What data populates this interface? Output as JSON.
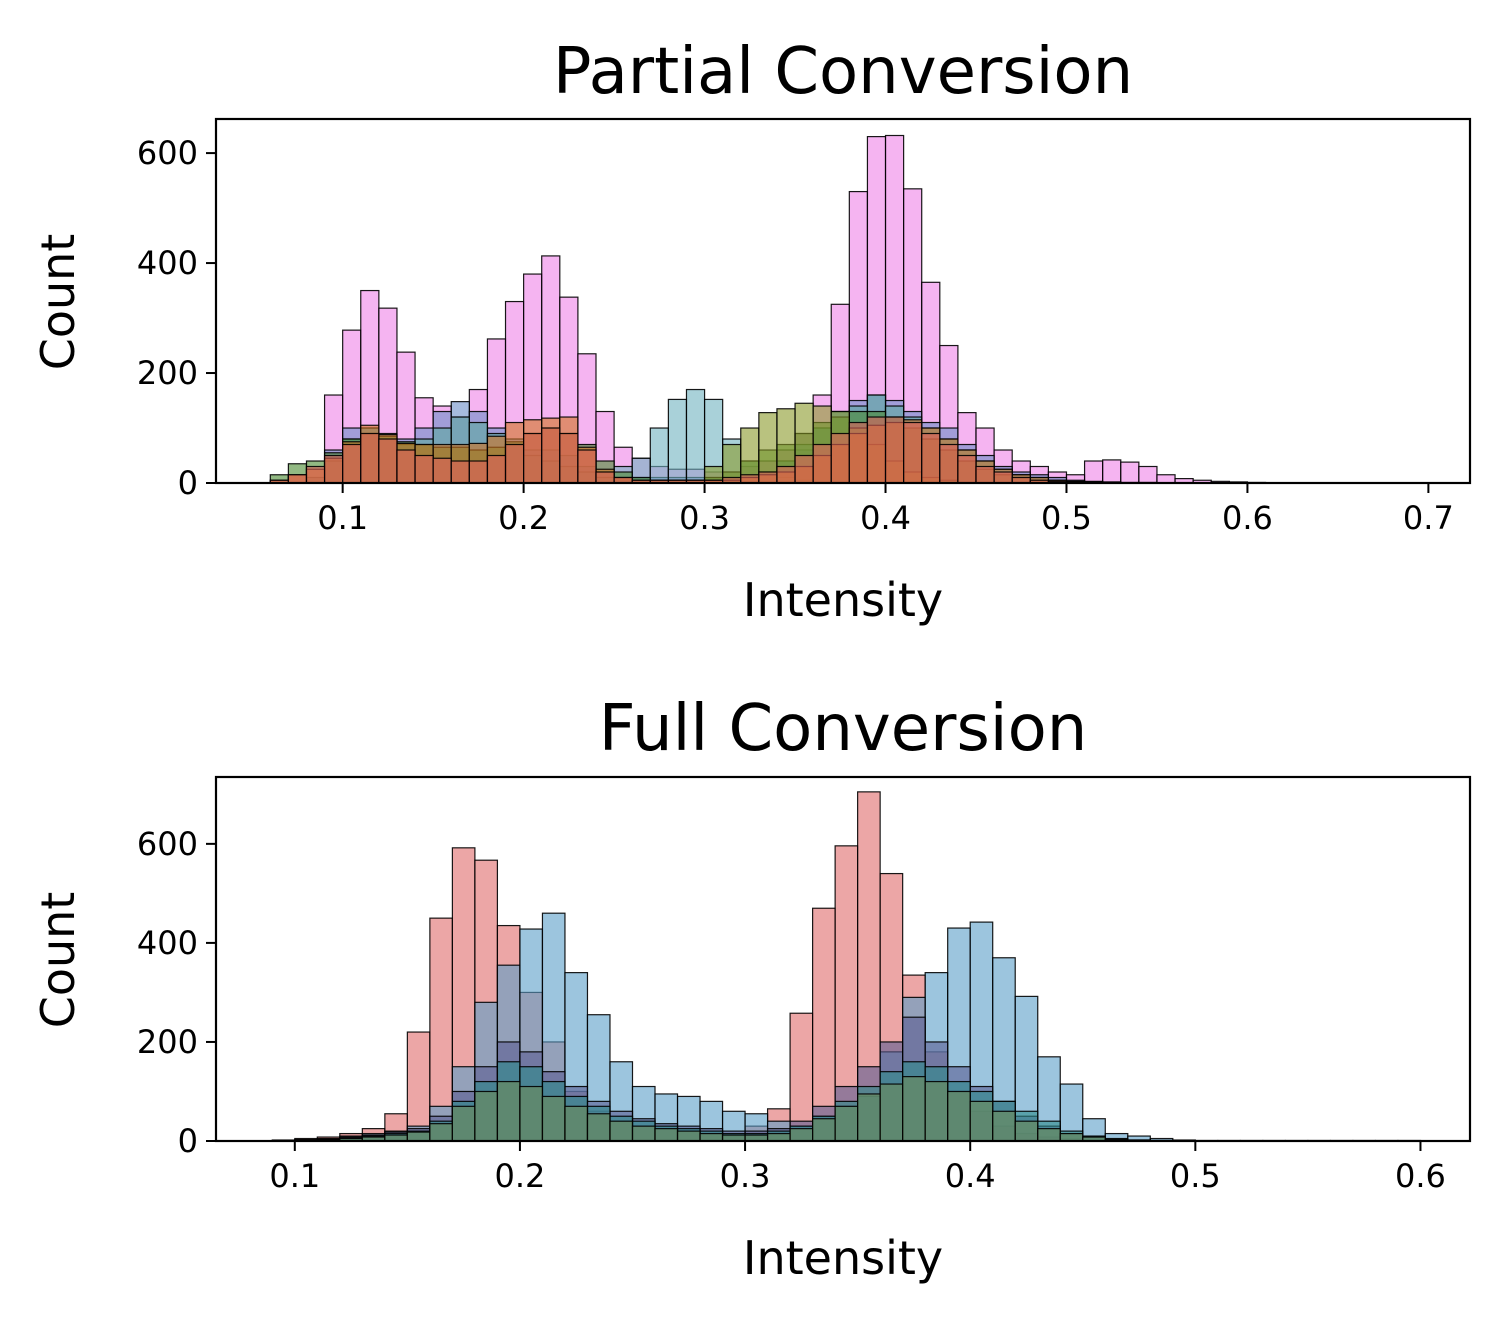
{
  "chart_data": [
    {
      "type": "histogram",
      "title": "Partial Conversion",
      "xlabel": "Intensity",
      "ylabel": "Count",
      "xlim": [
        0.03,
        0.723
      ],
      "ylim": [
        0,
        662
      ],
      "xticks": [
        0.1,
        0.2,
        0.3,
        0.4,
        0.5,
        0.6,
        0.7
      ],
      "xtick_labels": [
        "0.1",
        "0.2",
        "0.3",
        "0.4",
        "0.5",
        "0.6",
        "0.7"
      ],
      "yticks": [
        0,
        200,
        400,
        600
      ],
      "ytick_labels": [
        "0",
        "200",
        "400",
        "600"
      ],
      "bin_start": 0.06,
      "bin_width": 0.01,
      "series": [
        {
          "color": "#ee82e8",
          "values": [
            0,
            0,
            0,
            160,
            278,
            350,
            318,
            238,
            155,
            140,
            120,
            170,
            262,
            330,
            380,
            413,
            338,
            235,
            130,
            65,
            45,
            30,
            25,
            25,
            20,
            20,
            30,
            40,
            60,
            90,
            160,
            325,
            530,
            630,
            632,
            535,
            365,
            250,
            128,
            100,
            60,
            40,
            30,
            20,
            15,
            40,
            42,
            38,
            30,
            15,
            8,
            5,
            3,
            2,
            1
          ]
        },
        {
          "color": "#6a8ec8",
          "values": [
            0,
            0,
            0,
            60,
            100,
            100,
            80,
            80,
            100,
            130,
            148,
            130,
            100,
            80,
            60,
            60,
            50,
            30,
            20,
            10,
            10,
            10,
            10,
            10,
            10,
            10,
            10,
            20,
            40,
            60,
            100,
            130,
            150,
            160,
            150,
            130,
            110,
            100,
            70,
            50,
            30,
            20,
            15,
            10,
            5,
            3,
            2,
            1,
            1,
            0,
            0,
            0,
            0,
            0,
            0
          ]
        },
        {
          "color": "#5aa8a0",
          "values": [
            0,
            0,
            10,
            40,
            80,
            100,
            90,
            70,
            80,
            100,
            120,
            110,
            90,
            70,
            50,
            40,
            30,
            20,
            10,
            5,
            5,
            5,
            5,
            5,
            5,
            5,
            10,
            20,
            40,
            70,
            100,
            130,
            140,
            160,
            140,
            120,
            100,
            80,
            60,
            40,
            25,
            15,
            10,
            5,
            3,
            2,
            1,
            0,
            0,
            0,
            0,
            0,
            0,
            0,
            0
          ]
        },
        {
          "color": "#6fb2bf",
          "values": [
            0,
            0,
            0,
            0,
            0,
            0,
            0,
            0,
            0,
            0,
            0,
            0,
            0,
            0,
            0,
            0,
            0,
            0,
            10,
            30,
            45,
            100,
            152,
            170,
            152,
            80,
            40,
            20,
            10,
            5,
            0,
            0,
            0,
            0,
            0,
            0,
            0,
            0,
            0,
            0,
            0,
            0,
            0,
            0,
            0,
            0,
            0,
            0,
            0,
            0,
            0,
            0,
            0,
            0,
            0
          ]
        },
        {
          "color": "#4a8a30",
          "values": [
            15,
            35,
            40,
            55,
            80,
            90,
            85,
            75,
            70,
            65,
            65,
            60,
            65,
            75,
            90,
            100,
            90,
            70,
            40,
            20,
            10,
            5,
            5,
            5,
            10,
            20,
            40,
            60,
            70,
            90,
            110,
            120,
            130,
            130,
            120,
            100,
            80,
            60,
            40,
            25,
            15,
            10,
            5,
            3,
            2,
            1,
            0,
            0,
            0,
            0,
            0,
            0,
            0,
            0,
            0
          ]
        },
        {
          "color": "#8a9a2a",
          "values": [
            0,
            0,
            0,
            0,
            0,
            0,
            0,
            0,
            0,
            0,
            0,
            0,
            0,
            0,
            0,
            0,
            0,
            0,
            0,
            0,
            0,
            0,
            0,
            0,
            30,
            70,
            100,
            128,
            135,
            145,
            140,
            130,
            100,
            70,
            40,
            20,
            10,
            5,
            0,
            0,
            0,
            0,
            0,
            0,
            0,
            0,
            0,
            0,
            0,
            0,
            0,
            0,
            0,
            0,
            0
          ]
        },
        {
          "color": "#d2731f",
          "values": [
            5,
            15,
            25,
            45,
            75,
            105,
            88,
            72,
            70,
            70,
            70,
            72,
            85,
            110,
            115,
            118,
            120,
            65,
            25,
            10,
            5,
            5,
            5,
            5,
            5,
            5,
            10,
            15,
            20,
            30,
            50,
            70,
            90,
            105,
            110,
            115,
            100,
            80,
            60,
            40,
            25,
            15,
            10,
            5,
            3,
            2,
            1,
            0,
            0,
            0,
            0,
            0,
            0,
            0,
            0
          ]
        },
        {
          "color": "#e0605a",
          "values": [
            5,
            15,
            30,
            50,
            70,
            90,
            80,
            60,
            50,
            45,
            40,
            40,
            50,
            70,
            90,
            100,
            90,
            60,
            20,
            10,
            5,
            5,
            5,
            5,
            5,
            10,
            15,
            20,
            30,
            50,
            70,
            90,
            110,
            120,
            120,
            110,
            90,
            70,
            50,
            30,
            20,
            10,
            5,
            3,
            2,
            1,
            0,
            0,
            0,
            0,
            0,
            0,
            0,
            0,
            0
          ]
        }
      ]
    },
    {
      "type": "histogram",
      "title": "Full Conversion",
      "xlabel": "Intensity",
      "ylabel": "Count",
      "xlim": [
        0.065,
        0.622
      ],
      "ylim": [
        0,
        735
      ],
      "xticks": [
        0.1,
        0.2,
        0.3,
        0.4,
        0.5,
        0.6
      ],
      "xtick_labels": [
        "0.1",
        "0.2",
        "0.3",
        "0.4",
        "0.5",
        "0.6"
      ],
      "yticks": [
        0,
        200,
        400,
        600
      ],
      "ytick_labels": [
        "0",
        "200",
        "400",
        "600"
      ],
      "bin_start": 0.09,
      "bin_width": 0.01,
      "series": [
        {
          "color": "#e06a6a",
          "values": [
            2,
            5,
            8,
            15,
            25,
            55,
            220,
            450,
            592,
            567,
            435,
            300,
            200,
            100,
            60,
            40,
            30,
            25,
            20,
            15,
            10,
            30,
            65,
            258,
            470,
            596,
            705,
            540,
            335,
            180,
            100,
            60,
            30,
            15,
            8,
            4,
            2,
            1,
            0,
            0,
            0,
            0,
            0,
            0,
            0,
            0,
            0,
            0,
            0,
            0,
            0
          ]
        },
        {
          "color": "#5a9ec8",
          "values": [
            1,
            3,
            5,
            10,
            15,
            20,
            30,
            70,
            150,
            280,
            355,
            428,
            460,
            340,
            255,
            160,
            110,
            95,
            90,
            80,
            60,
            55,
            40,
            30,
            50,
            70,
            90,
            180,
            290,
            340,
            430,
            442,
            370,
            292,
            170,
            115,
            45,
            15,
            10,
            5,
            2,
            1,
            1,
            1,
            1,
            1,
            1,
            1,
            1,
            1,
            1
          ]
        },
        {
          "color": "#5c5e92",
          "values": [
            0,
            2,
            4,
            8,
            12,
            18,
            25,
            50,
            100,
            150,
            200,
            180,
            140,
            110,
            80,
            60,
            45,
            35,
            30,
            25,
            20,
            20,
            25,
            40,
            70,
            110,
            150,
            200,
            250,
            200,
            150,
            110,
            80,
            50,
            30,
            15,
            8,
            4,
            2,
            1,
            0,
            0,
            0,
            0,
            0,
            0,
            0,
            0,
            0,
            0,
            0
          ]
        },
        {
          "color": "#2f8a8a",
          "values": [
            0,
            1,
            3,
            6,
            10,
            15,
            20,
            40,
            80,
            120,
            160,
            150,
            120,
            90,
            70,
            50,
            40,
            30,
            25,
            20,
            15,
            15,
            20,
            30,
            50,
            80,
            110,
            140,
            160,
            150,
            120,
            100,
            80,
            60,
            40,
            20,
            10,
            5,
            2,
            1,
            0,
            0,
            0,
            0,
            0,
            0,
            0,
            0,
            0,
            0,
            0
          ]
        },
        {
          "color": "#6c8c58",
          "values": [
            0,
            1,
            2,
            5,
            8,
            12,
            18,
            35,
            70,
            100,
            120,
            110,
            90,
            70,
            55,
            40,
            30,
            25,
            20,
            15,
            12,
            12,
            15,
            25,
            45,
            70,
            95,
            115,
            130,
            120,
            100,
            80,
            60,
            40,
            25,
            15,
            8,
            3,
            1,
            0,
            0,
            0,
            0,
            0,
            0,
            0,
            0,
            0,
            0,
            0,
            0
          ]
        }
      ]
    }
  ]
}
